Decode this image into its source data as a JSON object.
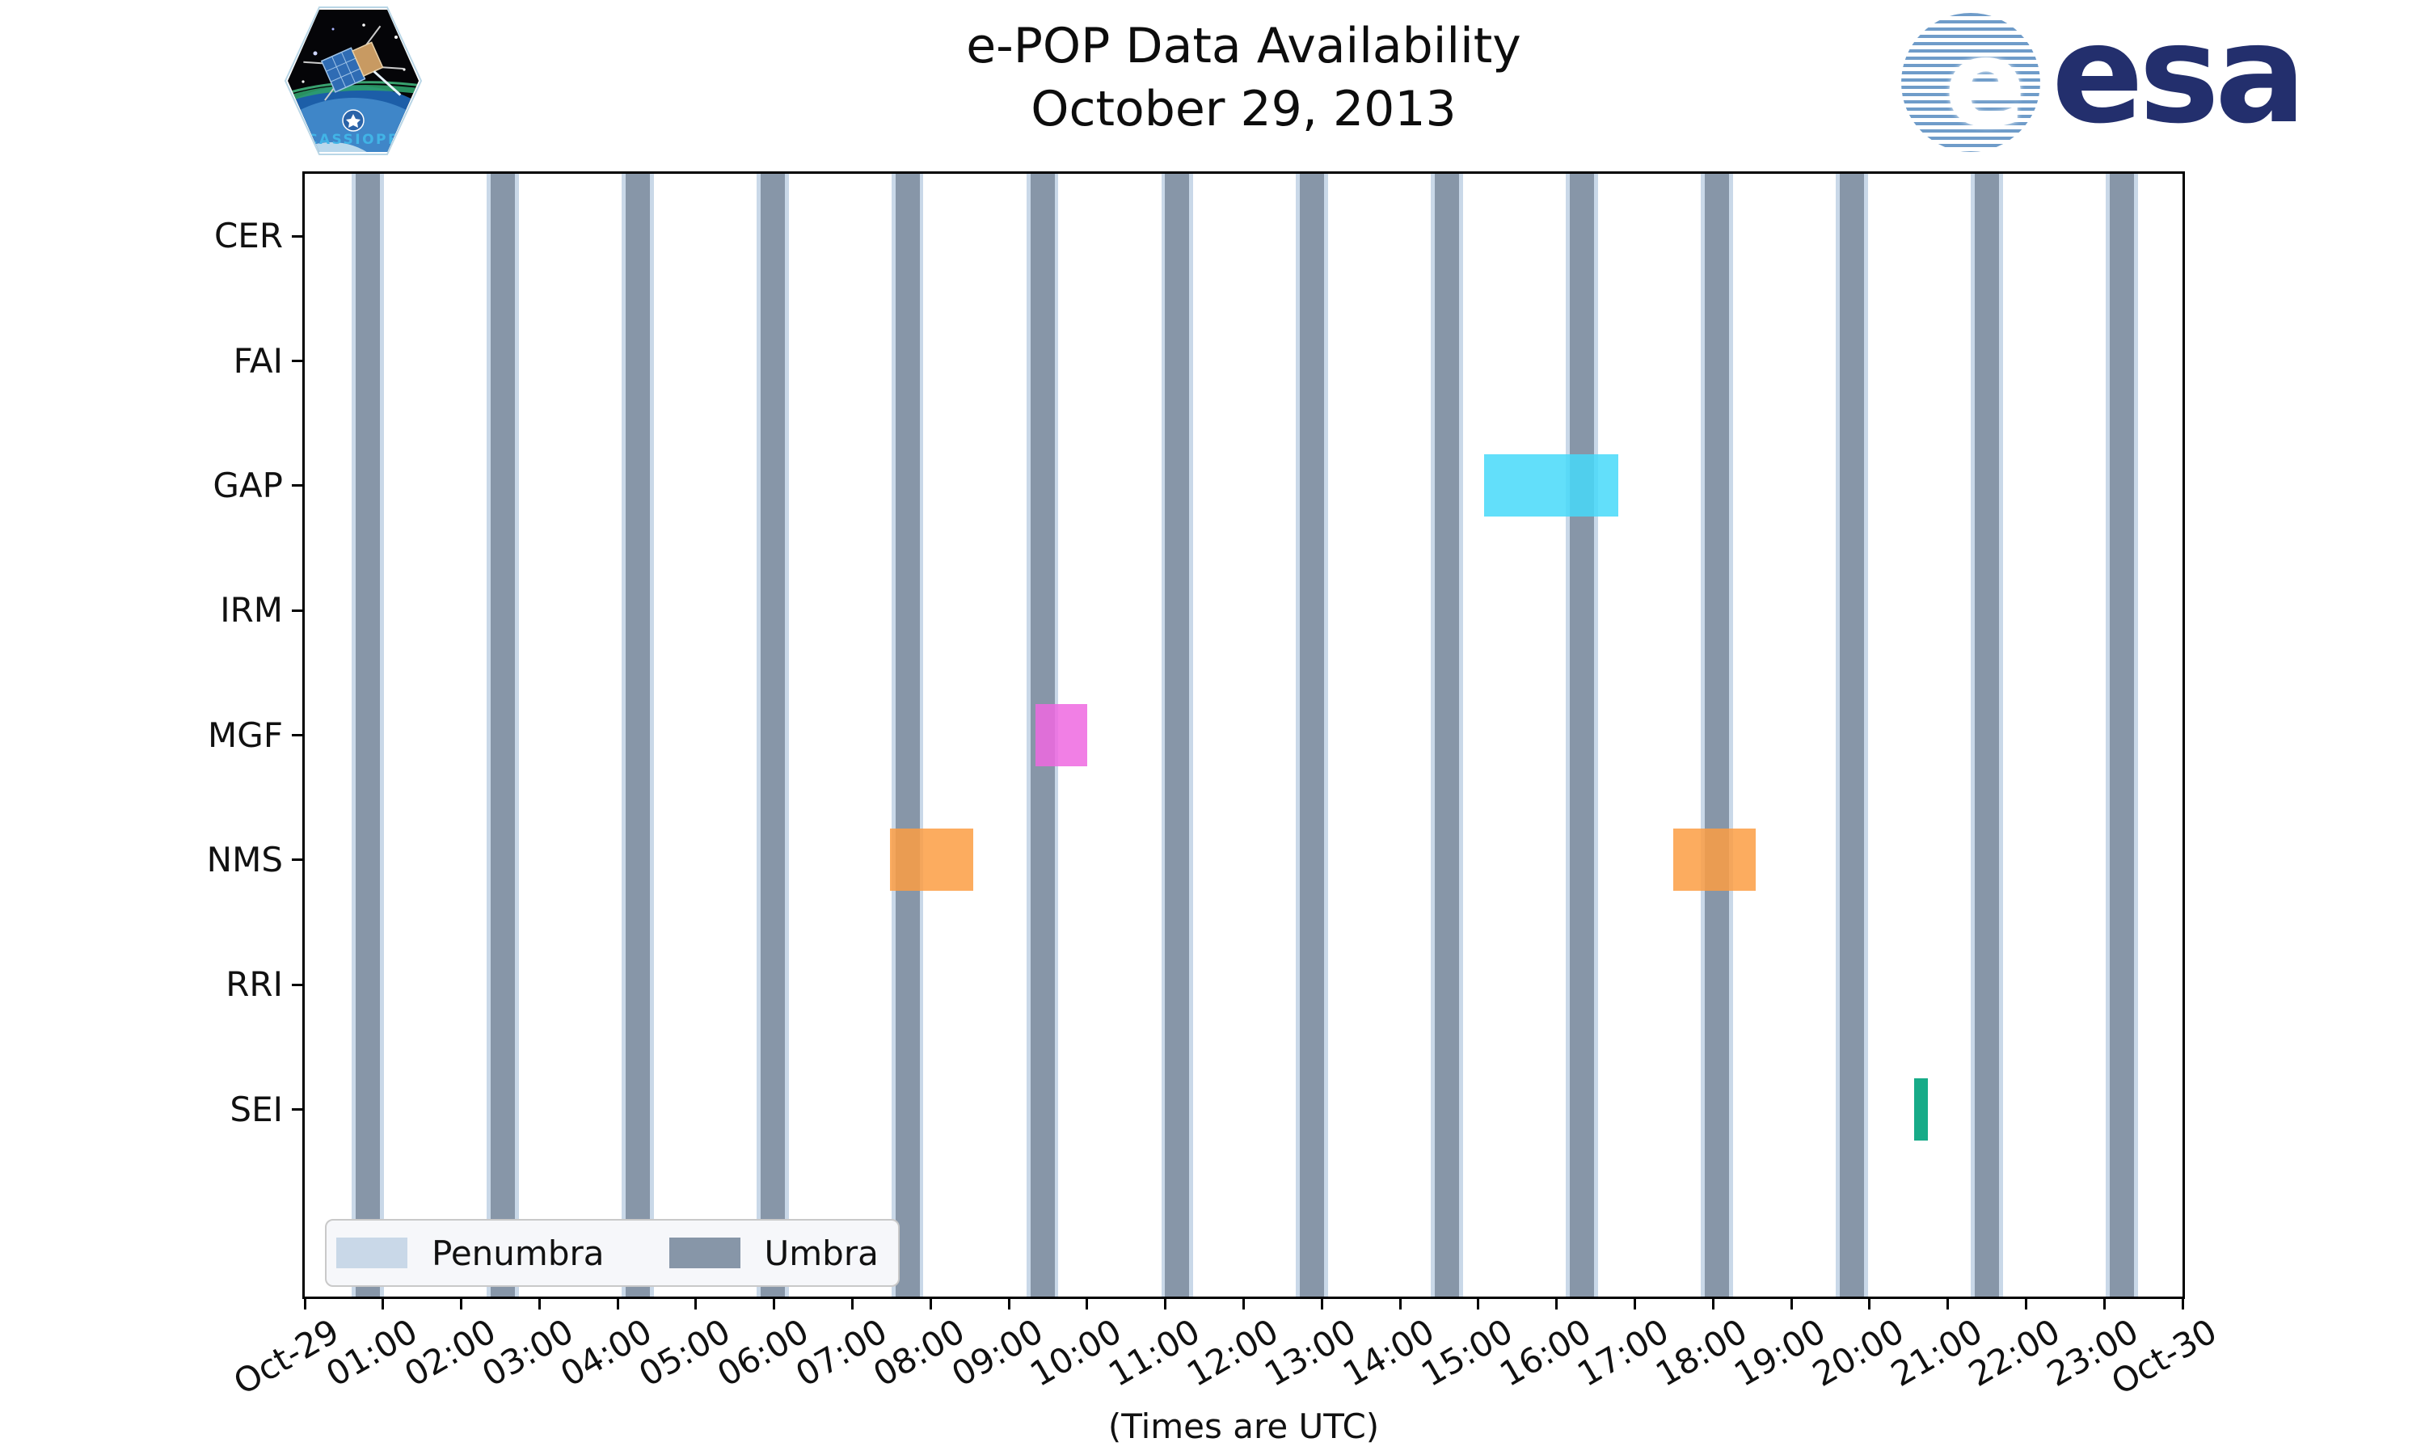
{
  "header": {
    "title_line1": "e-POP Data Availability",
    "title_line2": "October 29, 2013",
    "esa_text": "esa",
    "esa_globe_letter": "e",
    "cassiope_patch_text": "CASSIOPE"
  },
  "chart_data": {
    "type": "availability-timeline",
    "title": "e-POP Data Availability",
    "subtitle": "October 29, 2013",
    "xlabel": "(Times are UTC)",
    "grid": false,
    "x_axis": {
      "range_hours": [
        0,
        24
      ],
      "tick_labels": [
        "Oct-29",
        "01:00",
        "02:00",
        "03:00",
        "04:00",
        "05:00",
        "06:00",
        "07:00",
        "08:00",
        "09:00",
        "10:00",
        "11:00",
        "12:00",
        "13:00",
        "14:00",
        "15:00",
        "16:00",
        "17:00",
        "18:00",
        "19:00",
        "20:00",
        "21:00",
        "22:00",
        "23:00",
        "Oct-30"
      ],
      "tick_hours": [
        0,
        1,
        2,
        3,
        4,
        5,
        6,
        7,
        8,
        9,
        10,
        11,
        12,
        13,
        14,
        15,
        16,
        17,
        18,
        19,
        20,
        21,
        22,
        23,
        24
      ],
      "label_rotation_deg": 30
    },
    "instruments": [
      "CER",
      "FAI",
      "GAP",
      "IRM",
      "MGF",
      "NMS",
      "RRI",
      "SEI"
    ],
    "umbra_windows": [
      {
        "start": "00:39",
        "end": "00:58",
        "start_h": 0.651,
        "end_h": 0.961
      },
      {
        "start": "02:22",
        "end": "02:41",
        "start_h": 2.375,
        "end_h": 2.685
      },
      {
        "start": "04:06",
        "end": "04:25",
        "start_h": 4.1,
        "end_h": 4.41
      },
      {
        "start": "05:49",
        "end": "06:08",
        "start_h": 5.824,
        "end_h": 6.134
      },
      {
        "start": "07:33",
        "end": "07:51",
        "start_h": 7.548,
        "end_h": 7.858
      },
      {
        "start": "09:16",
        "end": "09:35",
        "start_h": 9.273,
        "end_h": 9.583
      },
      {
        "start": "11:00",
        "end": "11:18",
        "start_h": 10.997,
        "end_h": 11.307
      },
      {
        "start": "12:43",
        "end": "13:02",
        "start_h": 12.721,
        "end_h": 13.031
      },
      {
        "start": "14:27",
        "end": "14:45",
        "start_h": 14.445,
        "end_h": 14.755
      },
      {
        "start": "16:10",
        "end": "16:29",
        "start_h": 16.17,
        "end_h": 16.48
      },
      {
        "start": "17:54",
        "end": "18:12",
        "start_h": 17.894,
        "end_h": 18.204
      },
      {
        "start": "19:37",
        "end": "19:56",
        "start_h": 19.618,
        "end_h": 19.928
      },
      {
        "start": "21:21",
        "end": "21:39",
        "start_h": 21.343,
        "end_h": 21.653
      },
      {
        "start": "23:04",
        "end": "23:23",
        "start_h": 23.067,
        "end_h": 23.377
      }
    ],
    "penumbra_margin_h": 0.05,
    "availability": [
      {
        "instrument": "GAP",
        "start": "15:04",
        "end": "16:47",
        "start_h": 15.07,
        "end_h": 16.79,
        "color": "rgba(70,217,249,0.85)"
      },
      {
        "instrument": "MGF",
        "start": "09:20",
        "end": "10:00",
        "start_h": 9.34,
        "end_h": 10.0,
        "color": "rgba(238,104,225,0.85)"
      },
      {
        "instrument": "NMS",
        "start": "07:29",
        "end": "08:32",
        "start_h": 7.48,
        "end_h": 8.54,
        "color": "rgba(252,157,67,0.85)"
      },
      {
        "instrument": "NMS",
        "start": "17:29",
        "end": "18:32",
        "start_h": 17.49,
        "end_h": 18.54,
        "color": "rgba(252,157,67,0.85)"
      },
      {
        "instrument": "SEI",
        "start": "20:34",
        "end": "20:45",
        "start_h": 20.57,
        "end_h": 20.75,
        "color": "rgba(23,171,136,1)"
      }
    ],
    "legend": {
      "position": "lower left",
      "items": [
        {
          "label": "Penumbra",
          "color": "#C9D8E8"
        },
        {
          "label": "Umbra",
          "color": "#8796A8"
        }
      ]
    },
    "colors": {
      "umbra": "#8796A8",
      "penumbra": "#C9D8E8",
      "axis": "#000000"
    }
  }
}
